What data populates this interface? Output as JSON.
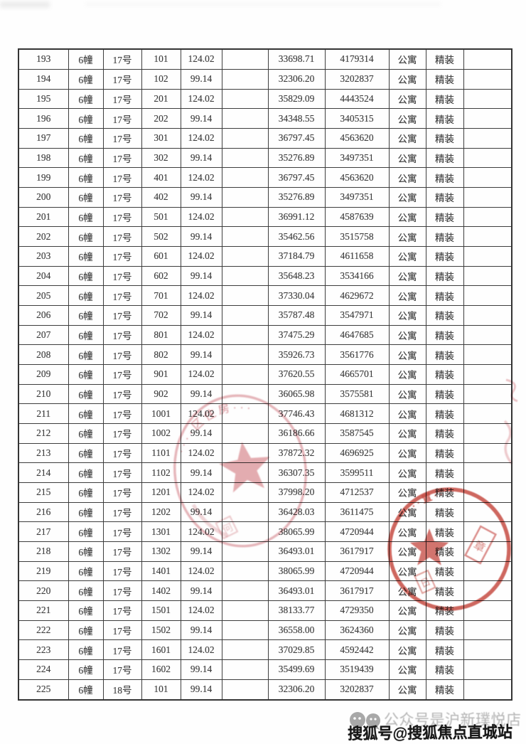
{
  "table": {
    "rows": [
      [
        "193",
        "6幢",
        "17号",
        "101",
        "124.02",
        "",
        "33698.71",
        "4179314",
        "公寓",
        "精装",
        ""
      ],
      [
        "194",
        "6幢",
        "17号",
        "102",
        "99.14",
        "",
        "32306.20",
        "3202837",
        "公寓",
        "精装",
        ""
      ],
      [
        "195",
        "6幢",
        "17号",
        "201",
        "124.02",
        "",
        "35829.09",
        "4443524",
        "公寓",
        "精装",
        ""
      ],
      [
        "196",
        "6幢",
        "17号",
        "202",
        "99.14",
        "",
        "34348.55",
        "3405315",
        "公寓",
        "精装",
        ""
      ],
      [
        "197",
        "6幢",
        "17号",
        "301",
        "124.02",
        "",
        "36797.45",
        "4563620",
        "公寓",
        "精装",
        ""
      ],
      [
        "198",
        "6幢",
        "17号",
        "302",
        "99.14",
        "",
        "35276.89",
        "3497351",
        "公寓",
        "精装",
        ""
      ],
      [
        "199",
        "6幢",
        "17号",
        "401",
        "124.02",
        "",
        "36797.45",
        "4563620",
        "公寓",
        "精装",
        ""
      ],
      [
        "200",
        "6幢",
        "17号",
        "402",
        "99.14",
        "",
        "35276.89",
        "3497351",
        "公寓",
        "精装",
        ""
      ],
      [
        "201",
        "6幢",
        "17号",
        "501",
        "124.02",
        "",
        "36991.12",
        "4587639",
        "公寓",
        "精装",
        ""
      ],
      [
        "202",
        "6幢",
        "17号",
        "502",
        "99.14",
        "",
        "35462.56",
        "3515758",
        "公寓",
        "精装",
        ""
      ],
      [
        "203",
        "6幢",
        "17号",
        "601",
        "124.02",
        "",
        "37184.79",
        "4611658",
        "公寓",
        "精装",
        ""
      ],
      [
        "204",
        "6幢",
        "17号",
        "602",
        "99.14",
        "",
        "35648.23",
        "3534166",
        "公寓",
        "精装",
        ""
      ],
      [
        "205",
        "6幢",
        "17号",
        "701",
        "124.02",
        "",
        "37330.04",
        "4629672",
        "公寓",
        "精装",
        ""
      ],
      [
        "206",
        "6幢",
        "17号",
        "702",
        "99.14",
        "",
        "35787.48",
        "3547971",
        "公寓",
        "精装",
        ""
      ],
      [
        "207",
        "6幢",
        "17号",
        "801",
        "124.02",
        "",
        "37475.29",
        "4647685",
        "公寓",
        "精装",
        ""
      ],
      [
        "208",
        "6幢",
        "17号",
        "802",
        "99.14",
        "",
        "35926.73",
        "3561776",
        "公寓",
        "精装",
        ""
      ],
      [
        "209",
        "6幢",
        "17号",
        "901",
        "124.02",
        "",
        "37620.55",
        "4665701",
        "公寓",
        "精装",
        ""
      ],
      [
        "210",
        "6幢",
        "17号",
        "902",
        "99.14",
        "",
        "36065.98",
        "3575581",
        "公寓",
        "精装",
        ""
      ],
      [
        "211",
        "6幢",
        "17号",
        "1001",
        "124.02",
        "",
        "37746.43",
        "4681312",
        "公寓",
        "精装",
        ""
      ],
      [
        "212",
        "6幢",
        "17号",
        "1002",
        "99.14",
        "",
        "36186.66",
        "3587545",
        "公寓",
        "精装",
        ""
      ],
      [
        "213",
        "6幢",
        "17号",
        "1101",
        "124.02",
        "",
        "37872.32",
        "4696925",
        "公寓",
        "精装",
        ""
      ],
      [
        "214",
        "6幢",
        "17号",
        "1102",
        "99.14",
        "",
        "36307.35",
        "3599511",
        "公寓",
        "精装",
        ""
      ],
      [
        "215",
        "6幢",
        "17号",
        "1201",
        "124.02",
        "",
        "37998.20",
        "4712537",
        "公寓",
        "精装",
        ""
      ],
      [
        "216",
        "6幢",
        "17号",
        "1202",
        "99.14",
        "",
        "36428.03",
        "3611475",
        "公寓",
        "精装",
        ""
      ],
      [
        "217",
        "6幢",
        "17号",
        "1301",
        "124.02",
        "",
        "38065.99",
        "4720944",
        "公寓",
        "精装",
        ""
      ],
      [
        "218",
        "6幢",
        "17号",
        "1302",
        "99.14",
        "",
        "36493.01",
        "3617917",
        "公寓",
        "精装",
        ""
      ],
      [
        "219",
        "6幢",
        "17号",
        "1401",
        "124.02",
        "",
        "38065.99",
        "4720944",
        "公寓",
        "精装",
        ""
      ],
      [
        "220",
        "6幢",
        "17号",
        "1402",
        "99.14",
        "",
        "36493.01",
        "3617917",
        "公寓",
        "精装",
        ""
      ],
      [
        "221",
        "6幢",
        "17号",
        "1501",
        "124.02",
        "",
        "38133.77",
        "4729350",
        "公寓",
        "精装",
        ""
      ],
      [
        "222",
        "6幢",
        "17号",
        "1502",
        "99.14",
        "",
        "36558.00",
        "3624360",
        "公寓",
        "精装",
        ""
      ],
      [
        "223",
        "6幢",
        "17号",
        "1601",
        "124.02",
        "",
        "37029.85",
        "4592442",
        "公寓",
        "精装",
        ""
      ],
      [
        "224",
        "6幢",
        "17号",
        "1602",
        "99.14",
        "",
        "35499.69",
        "3519439",
        "公寓",
        "精装",
        ""
      ],
      [
        "225",
        "6幢",
        "18号",
        "101",
        "99.14",
        "",
        "32306.20",
        "3202837",
        "公寓",
        "精装",
        ""
      ]
    ]
  },
  "stamps": {
    "government": {
      "arc_text": "····区住房···",
      "corner_mark": "何"
    },
    "company": {
      "arc_text": "···置··",
      "box_mark": "章",
      "date_mark": "日"
    }
  },
  "watermark": {
    "wechat_text": "公众号是沪新璞悦店",
    "sohu_text": "搜狐号@搜狐焦点直城站"
  },
  "colors": {
    "stamp_pink": "#c96570",
    "stamp_red": "#c23c34",
    "watermark_gray": "#b4b4b4",
    "watermark_dark": "#171717",
    "table_border": "#3d3d3d",
    "table_text": "#3f3f3f"
  }
}
